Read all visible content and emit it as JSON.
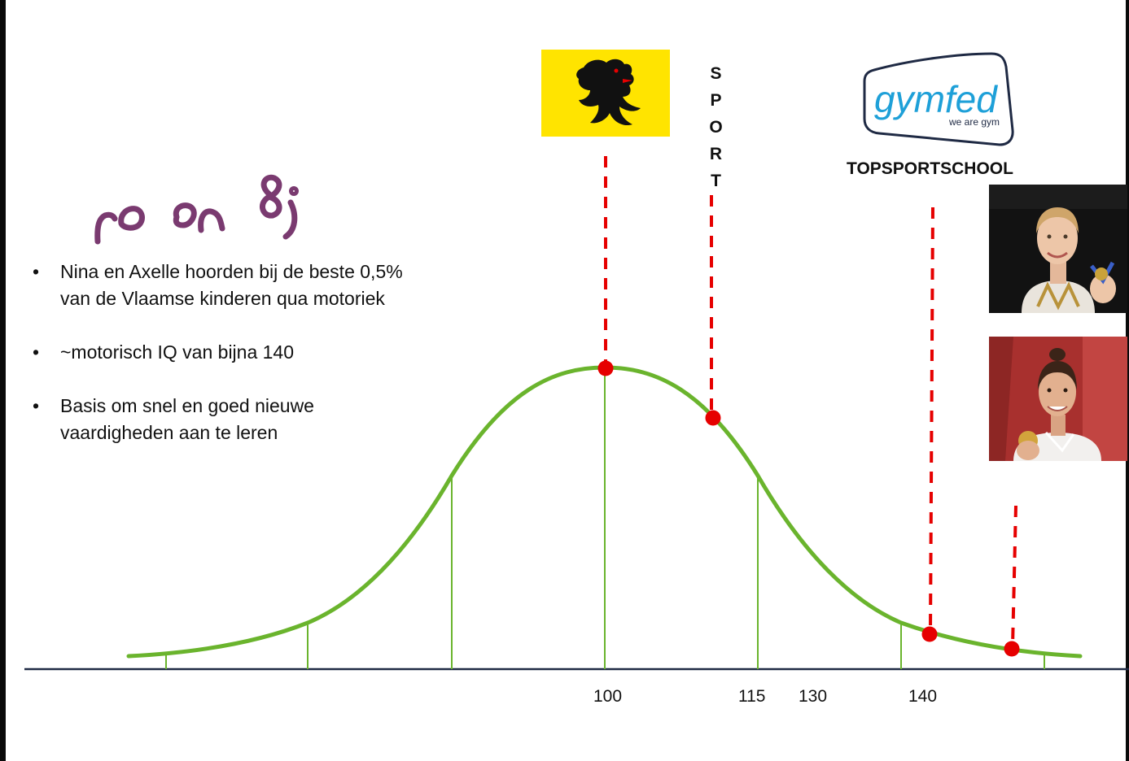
{
  "bullets": [
    "Nina en Axelle hoorden bij de beste 0,5% van de Vlaamse kinderen qua motoriek",
    "~motorisch IQ van bijna 140",
    "Basis om snel en goed nieuwe vaardigheden aan te leren"
  ],
  "bullet_symbol": "•",
  "axis_ticks": [
    "100",
    "115",
    "130",
    "140"
  ],
  "sport_letters": [
    "S",
    "P",
    "O",
    "R",
    "T"
  ],
  "gymfed_logo": {
    "name": "gymfed",
    "tagline": "we are gym"
  },
  "topsportschool_label": "TOPSPORTSCHOOL",
  "colors": {
    "curve": "#6AB42D",
    "marker": "#E60000",
    "axis": "#1F2A44",
    "flag": "#FFE400",
    "logo_blue": "#1EA0D8",
    "ink": "#7A3A70"
  }
}
